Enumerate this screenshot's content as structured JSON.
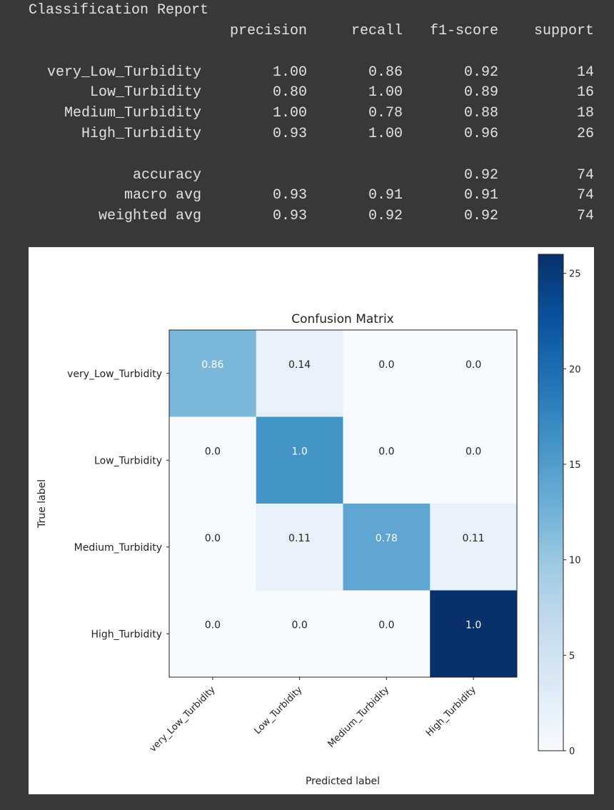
{
  "report": {
    "title": "Classification Report",
    "headers": [
      "precision",
      "recall",
      "f1-score",
      "support"
    ],
    "rows": [
      {
        "label": "very_Low_Turbidity",
        "precision": "1.00",
        "recall": "0.86",
        "f1": "0.92",
        "support": "14"
      },
      {
        "label": "Low_Turbidity",
        "precision": "0.80",
        "recall": "1.00",
        "f1": "0.89",
        "support": "16"
      },
      {
        "label": "Medium_Turbidity",
        "precision": "1.00",
        "recall": "0.78",
        "f1": "0.88",
        "support": "18"
      },
      {
        "label": "High_Turbidity",
        "precision": "0.93",
        "recall": "1.00",
        "f1": "0.96",
        "support": "26"
      }
    ],
    "summary": [
      {
        "label": "accuracy",
        "precision": "",
        "recall": "",
        "f1": "0.92",
        "support": "74"
      },
      {
        "label": "macro avg",
        "precision": "0.93",
        "recall": "0.91",
        "f1": "0.91",
        "support": "74"
      },
      {
        "label": "weighted avg",
        "precision": "0.93",
        "recall": "0.92",
        "f1": "0.92",
        "support": "74"
      }
    ]
  },
  "chart_data": {
    "type": "heatmap",
    "title": "Confusion Matrix",
    "xlabel": "Predicted label",
    "ylabel": "True label",
    "x_categories": [
      "very_Low_Turbidity",
      "Low_Turbidity",
      "Medium_Turbidity",
      "High_Turbidity"
    ],
    "y_categories": [
      "very_Low_Turbidity",
      "Low_Turbidity",
      "Medium_Turbidity",
      "High_Turbidity"
    ],
    "cell_labels": [
      [
        "0.86",
        "0.14",
        "0.0",
        "0.0"
      ],
      [
        "0.0",
        "1.0",
        "0.0",
        "0.0"
      ],
      [
        "0.0",
        "0.11",
        "0.78",
        "0.11"
      ],
      [
        "0.0",
        "0.0",
        "0.0",
        "1.0"
      ]
    ],
    "counts": [
      [
        12,
        2,
        0,
        0
      ],
      [
        0,
        16,
        0,
        0
      ],
      [
        0,
        2,
        14,
        2
      ],
      [
        0,
        0,
        0,
        26
      ]
    ],
    "colormap": "Blues",
    "colorbar": {
      "min": 0,
      "max": 26,
      "ticks": [
        0,
        5,
        10,
        15,
        20,
        25
      ]
    }
  }
}
